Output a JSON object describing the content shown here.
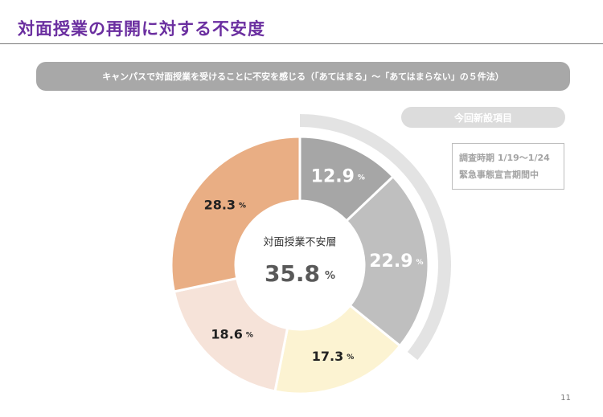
{
  "slide": {
    "title": "対面授業の再開に対する不安度",
    "question": "キャンパスで対面授業を受けることに不安を感じる（「あてはまる」〜「あてはまらない」の５件法）",
    "new_item_badge": "今回新設項目",
    "survey_period": "調査時期 1/19〜1/24",
    "emergency_period": "緊急事態宣言期間中",
    "page_number": "11"
  },
  "chart_data": {
    "type": "pie",
    "variant": "donut",
    "title": "",
    "center_label": "対面授業不安層",
    "center_value": "35.8",
    "center_unit": "%",
    "unit": "%",
    "categories": [
      "",
      "",
      "",
      "",
      ""
    ],
    "values": [
      12.9,
      22.9,
      17.3,
      18.6,
      28.3
    ],
    "labels": [
      "12.9",
      "22.9",
      "17.3",
      "18.6",
      "28.3"
    ],
    "colors": [
      "#a6a6a6",
      "#bfbfbf",
      "#fcf3d2",
      "#f6e3d9",
      "#e9ae84"
    ],
    "label_colors": [
      "#ffffff",
      "#ffffff",
      "#222222",
      "#222222",
      "#222222"
    ],
    "highlight_arc_color": "#e3e3e3",
    "highlight_covers_slices": [
      0,
      1
    ]
  }
}
